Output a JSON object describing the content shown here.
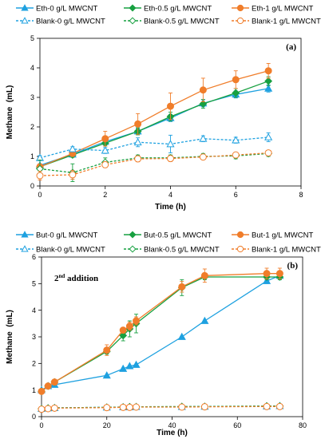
{
  "chart_data": [
    {
      "type": "line",
      "panel_label": "(a)",
      "xlabel": "Time (h)",
      "ylabel": "Methane  (mL)",
      "xlim": [
        0,
        8
      ],
      "ylim": [
        0,
        5
      ],
      "xticks": [
        0,
        2,
        4,
        6,
        8
      ],
      "yticks": [
        0,
        1,
        2,
        3,
        4,
        5
      ],
      "legend_placement": "top",
      "series": [
        {
          "name": "Eth-0 g/L MWCNT",
          "color": "#1ea1e0",
          "marker": "triangle",
          "filled": true,
          "dashed": false,
          "x": [
            0,
            1,
            2,
            3,
            4,
            5,
            6,
            7
          ],
          "y": [
            0.7,
            1.07,
            1.5,
            1.85,
            2.3,
            2.8,
            3.1,
            3.3
          ],
          "err": [
            0.05,
            0.08,
            0.1,
            0.1,
            0.12,
            0.12,
            0.12,
            0.12
          ]
        },
        {
          "name": "Eth-0.5 g/L MWCNT",
          "color": "#17a040",
          "marker": "diamond",
          "filled": true,
          "dashed": false,
          "x": [
            0,
            1,
            2,
            3,
            4,
            5,
            6,
            7
          ],
          "y": [
            0.65,
            1.05,
            1.45,
            1.85,
            2.35,
            2.78,
            3.15,
            3.55
          ],
          "err": [
            0.05,
            0.08,
            0.1,
            0.12,
            0.15,
            0.15,
            0.15,
            0.15
          ]
        },
        {
          "name": "Eth-1 g/L MWCNT",
          "color": "#f07d2a",
          "marker": "circle",
          "filled": true,
          "dashed": false,
          "x": [
            0,
            1,
            2,
            3,
            4,
            5,
            6,
            7
          ],
          "y": [
            0.65,
            1.1,
            1.6,
            2.1,
            2.7,
            3.25,
            3.6,
            3.9
          ],
          "err": [
            0.1,
            0.1,
            0.25,
            0.35,
            0.45,
            0.4,
            0.3,
            0.25
          ]
        },
        {
          "name": "Blank-0 g/L MWCNT",
          "color": "#1ea1e0",
          "marker": "triangle",
          "filled": false,
          "dashed": true,
          "x": [
            0,
            1,
            2,
            3,
            4,
            5,
            6,
            7
          ],
          "y": [
            0.95,
            1.25,
            1.2,
            1.48,
            1.42,
            1.6,
            1.55,
            1.65
          ],
          "err": [
            0.08,
            0.08,
            0.1,
            0.15,
            0.3,
            0.1,
            0.1,
            0.15
          ]
        },
        {
          "name": "Blank-0.5 g/L MWCNT",
          "color": "#17a040",
          "marker": "diamond",
          "filled": false,
          "dashed": true,
          "x": [
            0,
            1,
            2,
            3,
            4,
            5,
            6,
            7
          ],
          "y": [
            0.58,
            0.45,
            0.8,
            0.95,
            0.95,
            1.0,
            1.02,
            1.1
          ],
          "err": [
            0.3,
            0.3,
            0.15,
            0.1,
            0.1,
            0.1,
            0.1,
            0.1
          ]
        },
        {
          "name": "Blank-1 g/L MWCNT",
          "color": "#f07d2a",
          "marker": "circle",
          "filled": false,
          "dashed": true,
          "x": [
            0,
            1,
            2,
            3,
            4,
            5,
            6,
            7
          ],
          "y": [
            0.35,
            0.38,
            0.72,
            0.92,
            0.93,
            0.98,
            1.05,
            1.12
          ],
          "err": [
            0.15,
            0.15,
            0.1,
            0.1,
            0.1,
            0.08,
            0.08,
            0.08
          ]
        }
      ]
    },
    {
      "type": "line",
      "panel_label": "(b)",
      "annotation": {
        "text": "2",
        "sup": "nd",
        "rest": " addition"
      },
      "xlabel": "Time (h)",
      "ylabel": "Methane  (mL)",
      "xlim": [
        0,
        80
      ],
      "ylim": [
        0,
        6
      ],
      "xticks": [
        0,
        20,
        40,
        60,
        80
      ],
      "yticks": [
        0,
        1,
        2,
        3,
        4,
        5,
        6
      ],
      "legend_placement": "top",
      "series": [
        {
          "name": "But-0 g/L MWCNT",
          "color": "#1ea1e0",
          "marker": "triangle",
          "filled": true,
          "dashed": false,
          "x": [
            0,
            2,
            4,
            20,
            25,
            27,
            29,
            43,
            50,
            69,
            73
          ],
          "y": [
            1.0,
            1.15,
            1.2,
            1.55,
            1.8,
            1.9,
            1.95,
            3.0,
            3.6,
            5.1,
            5.3
          ],
          "err": [
            0,
            0,
            0,
            0,
            0,
            0,
            0,
            0,
            0,
            0.1,
            0.15
          ]
        },
        {
          "name": "But-0.5 g/L MWCNT",
          "color": "#17a040",
          "marker": "diamond",
          "filled": true,
          "dashed": false,
          "x": [
            0,
            2,
            4,
            20,
            25,
            27,
            29,
            43,
            50,
            69,
            73
          ],
          "y": [
            0.95,
            1.15,
            1.3,
            2.45,
            3.05,
            3.3,
            3.5,
            4.85,
            5.25,
            5.25,
            5.25
          ],
          "err": [
            0.05,
            0.05,
            0.05,
            0.1,
            0.2,
            0.3,
            0.35,
            0.3,
            0.1,
            0.1,
            0.1
          ]
        },
        {
          "name": "But-1 g/L MWCNT",
          "color": "#f07d2a",
          "marker": "circle",
          "filled": true,
          "dashed": false,
          "x": [
            0,
            2,
            4,
            20,
            25,
            27,
            29,
            43,
            50,
            69,
            73
          ],
          "y": [
            0.95,
            1.15,
            1.3,
            2.5,
            3.25,
            3.4,
            3.6,
            4.88,
            5.3,
            5.38,
            5.38
          ],
          "err": [
            0.05,
            0.05,
            0.05,
            0.2,
            0.1,
            0.15,
            0.15,
            0.2,
            0.25,
            0.2,
            0.2
          ]
        },
        {
          "name": "Blank-0 g/L MWCNT",
          "color": "#1ea1e0",
          "marker": "triangle",
          "filled": false,
          "dashed": true,
          "x": [
            0,
            2,
            4,
            20,
            25,
            27,
            29,
            43,
            50,
            69,
            73
          ],
          "y": [
            0.3,
            0.32,
            0.33,
            0.35,
            0.36,
            0.36,
            0.37,
            0.37,
            0.38,
            0.39,
            0.4
          ],
          "err": [
            0,
            0,
            0,
            0,
            0,
            0,
            0,
            0,
            0,
            0,
            0
          ]
        },
        {
          "name": "Blank-0.5 g/L MWCNT",
          "color": "#17a040",
          "marker": "diamond",
          "filled": false,
          "dashed": true,
          "x": [
            0,
            2,
            4,
            20,
            25,
            27,
            29,
            43,
            50,
            69,
            73
          ],
          "y": [
            0.3,
            0.32,
            0.33,
            0.35,
            0.36,
            0.37,
            0.37,
            0.38,
            0.38,
            0.4,
            0.4
          ],
          "err": [
            0,
            0,
            0,
            0,
            0,
            0,
            0,
            0,
            0,
            0,
            0
          ]
        },
        {
          "name": "Blank-1 g/L MWCNT",
          "color": "#f07d2a",
          "marker": "circle",
          "filled": false,
          "dashed": true,
          "x": [
            0,
            2,
            4,
            20,
            25,
            27,
            29,
            43,
            50,
            69,
            73
          ],
          "y": [
            0.28,
            0.3,
            0.32,
            0.34,
            0.35,
            0.35,
            0.36,
            0.36,
            0.37,
            0.38,
            0.38
          ],
          "err": [
            0,
            0,
            0,
            0,
            0,
            0,
            0,
            0,
            0,
            0,
            0
          ]
        }
      ]
    }
  ]
}
